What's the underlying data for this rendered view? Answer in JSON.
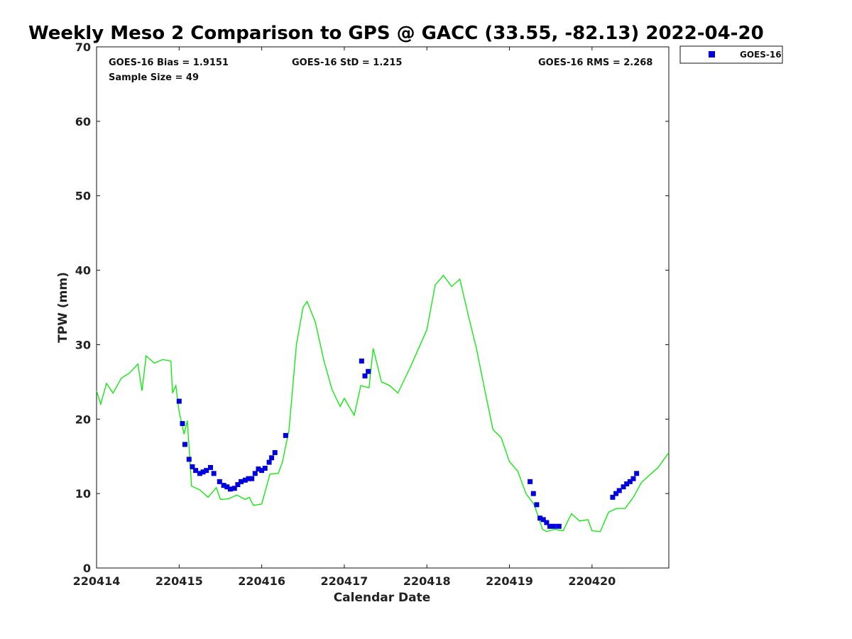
{
  "chart_data": {
    "type": "scatter",
    "title": "Weekly Meso 2 Comparison to GPS @ GACC (33.55, -82.13) 2022-04-20",
    "xlabel": "Calendar Date",
    "ylabel": "TPW (mm)",
    "xlim": [
      220414,
      220420.93
    ],
    "ylim": [
      0,
      70
    ],
    "x_tick_values": [
      220414,
      220415,
      220416,
      220417,
      220418,
      220419,
      220420
    ],
    "x_tick_labels": [
      "220414",
      "220415",
      "220416",
      "220417",
      "220418",
      "220419",
      "220420"
    ],
    "y_ticks": [
      0,
      10,
      20,
      30,
      40,
      50,
      60,
      70
    ],
    "grid": false,
    "legend_position": "top-right, outside plot",
    "stats": {
      "bias": "GOES-16 Bias = 1.9151",
      "std": "GOES-16 StD = 1.215",
      "rms": "GOES-16 RMS = 2.268",
      "sample_size": "Sample Size = 49"
    },
    "series": [
      {
        "name": "GOES-16",
        "kind": "scatter",
        "marker": "square",
        "color": "#0000dd",
        "points": [
          [
            220415.0,
            22.4
          ],
          [
            220415.04,
            19.4
          ],
          [
            220415.07,
            16.6
          ],
          [
            220415.12,
            14.6
          ],
          [
            220415.16,
            13.6
          ],
          [
            220415.2,
            13.1
          ],
          [
            220415.25,
            12.7
          ],
          [
            220415.29,
            12.9
          ],
          [
            220415.33,
            13.1
          ],
          [
            220415.38,
            13.5
          ],
          [
            220415.42,
            12.7
          ],
          [
            220415.49,
            11.6
          ],
          [
            220415.54,
            11.1
          ],
          [
            220415.58,
            10.9
          ],
          [
            220415.62,
            10.6
          ],
          [
            220415.67,
            10.7
          ],
          [
            220415.71,
            11.2
          ],
          [
            220415.75,
            11.6
          ],
          [
            220415.8,
            11.8
          ],
          [
            220415.84,
            12.0
          ],
          [
            220415.88,
            12.0
          ],
          [
            220415.92,
            12.7
          ],
          [
            220415.96,
            13.3
          ],
          [
            220416.0,
            13.1
          ],
          [
            220416.04,
            13.4
          ],
          [
            220416.09,
            14.2
          ],
          [
            220416.12,
            14.8
          ],
          [
            220416.16,
            15.5
          ],
          [
            220416.29,
            17.8
          ],
          [
            220417.21,
            27.8
          ],
          [
            220417.25,
            25.8
          ],
          [
            220417.29,
            26.4
          ],
          [
            220419.25,
            11.6
          ],
          [
            220419.29,
            10.0
          ],
          [
            220419.33,
            8.5
          ],
          [
            220419.37,
            6.7
          ],
          [
            220419.41,
            6.5
          ],
          [
            220419.45,
            6.1
          ],
          [
            220419.49,
            5.6
          ],
          [
            220419.54,
            5.6
          ],
          [
            220419.6,
            5.6
          ],
          [
            220420.25,
            9.5
          ],
          [
            220420.29,
            10.0
          ],
          [
            220420.33,
            10.4
          ],
          [
            220420.38,
            10.9
          ],
          [
            220420.42,
            11.3
          ],
          [
            220420.46,
            11.6
          ],
          [
            220420.5,
            12.0
          ],
          [
            220420.54,
            12.7
          ]
        ]
      },
      {
        "name": "",
        "kind": "line",
        "color": "#00ee00",
        "points": [
          [
            220414.0,
            23.8
          ],
          [
            220414.05,
            22.0
          ],
          [
            220414.12,
            24.8
          ],
          [
            220414.2,
            23.5
          ],
          [
            220414.3,
            25.5
          ],
          [
            220414.4,
            26.2
          ],
          [
            220414.5,
            27.4
          ],
          [
            220414.55,
            23.8
          ],
          [
            220414.6,
            28.5
          ],
          [
            220414.7,
            27.5
          ],
          [
            220414.8,
            28.0
          ],
          [
            220414.9,
            27.8
          ],
          [
            220414.92,
            23.5
          ],
          [
            220414.96,
            24.5
          ],
          [
            220415.0,
            21.0
          ],
          [
            220415.06,
            18.0
          ],
          [
            220415.1,
            19.8
          ],
          [
            220415.15,
            11.0
          ],
          [
            220415.25,
            10.5
          ],
          [
            220415.35,
            9.5
          ],
          [
            220415.45,
            10.8
          ],
          [
            220415.5,
            9.2
          ],
          [
            220415.6,
            9.3
          ],
          [
            220415.7,
            9.8
          ],
          [
            220415.8,
            9.2
          ],
          [
            220415.85,
            9.5
          ],
          [
            220415.9,
            8.4
          ],
          [
            220416.0,
            8.6
          ],
          [
            220416.1,
            12.6
          ],
          [
            220416.2,
            12.7
          ],
          [
            220416.25,
            14.2
          ],
          [
            220416.33,
            18.5
          ],
          [
            220416.42,
            30.0
          ],
          [
            220416.5,
            35.0
          ],
          [
            220416.55,
            35.8
          ],
          [
            220416.65,
            33.0
          ],
          [
            220416.75,
            28.0
          ],
          [
            220416.85,
            24.0
          ],
          [
            220416.95,
            21.7
          ],
          [
            220417.0,
            22.8
          ],
          [
            220417.12,
            20.5
          ],
          [
            220417.2,
            24.5
          ],
          [
            220417.3,
            24.2
          ],
          [
            220417.35,
            29.5
          ],
          [
            220417.45,
            25.0
          ],
          [
            220417.55,
            24.5
          ],
          [
            220417.65,
            23.5
          ],
          [
            220417.8,
            27.0
          ],
          [
            220417.9,
            29.5
          ],
          [
            220418.0,
            32.0
          ],
          [
            220418.1,
            38.0
          ],
          [
            220418.2,
            39.3
          ],
          [
            220418.3,
            37.8
          ],
          [
            220418.4,
            38.8
          ],
          [
            220418.5,
            34.0
          ],
          [
            220418.6,
            29.5
          ],
          [
            220418.7,
            24.0
          ],
          [
            220418.8,
            18.6
          ],
          [
            220418.9,
            17.5
          ],
          [
            220419.0,
            14.3
          ],
          [
            220419.1,
            13.0
          ],
          [
            220419.2,
            10.0
          ],
          [
            220419.3,
            8.5
          ],
          [
            220419.4,
            5.2
          ],
          [
            220419.45,
            4.9
          ],
          [
            220419.55,
            5.2
          ],
          [
            220419.65,
            5.0
          ],
          [
            220419.75,
            7.3
          ],
          [
            220419.85,
            6.3
          ],
          [
            220419.95,
            6.5
          ],
          [
            220420.0,
            5.0
          ],
          [
            220420.1,
            4.9
          ],
          [
            220420.2,
            7.5
          ],
          [
            220420.3,
            8.0
          ],
          [
            220420.4,
            8.0
          ],
          [
            220420.5,
            9.5
          ],
          [
            220420.6,
            11.5
          ],
          [
            220420.7,
            12.5
          ],
          [
            220420.8,
            13.5
          ],
          [
            220420.93,
            15.5
          ]
        ]
      }
    ]
  }
}
